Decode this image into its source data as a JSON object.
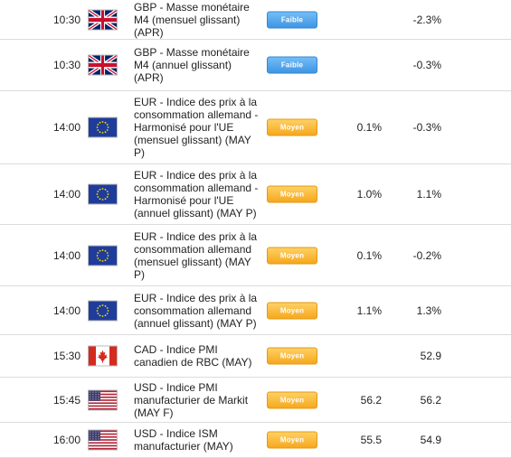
{
  "rows": [
    {
      "time": "10:30",
      "flag": "uk-flag-icon",
      "event": "GBP - Masse monétaire M4 (mensuel glissant) (APR)",
      "impact": "Faible",
      "level": "low",
      "forecast": "",
      "previous": "-2.3%"
    },
    {
      "time": "10:30",
      "flag": "uk-flag-icon",
      "event": "GBP - Masse monétaire M4 (annuel glissant) (APR)",
      "impact": "Faible",
      "level": "low",
      "forecast": "",
      "previous": "-0.3%"
    },
    {
      "time": "14:00",
      "flag": "eu-flag-icon",
      "event": "EUR - Indice des prix à la consommation allemand - Harmonisé pour l'UE (mensuel glissant) (MAY P)",
      "impact": "Moyen",
      "level": "mid",
      "forecast": "0.1%",
      "previous": "-0.3%"
    },
    {
      "time": "14:00",
      "flag": "eu-flag-icon",
      "event": "EUR - Indice des prix à la consommation allemand - Harmonisé pour l'UE (annuel glissant) (MAY P)",
      "impact": "Moyen",
      "level": "mid",
      "forecast": "1.0%",
      "previous": "1.1%"
    },
    {
      "time": "14:00",
      "flag": "eu-flag-icon",
      "event": "EUR - Indice des prix à la consommation allemand (mensuel glissant) (MAY P)",
      "impact": "Moyen",
      "level": "mid",
      "forecast": "0.1%",
      "previous": "-0.2%"
    },
    {
      "time": "14:00",
      "flag": "eu-flag-icon",
      "event": "EUR - Indice des prix à la consommation allemand (annuel glissant) (MAY P)",
      "impact": "Moyen",
      "level": "mid",
      "forecast": "1.1%",
      "previous": "1.3%"
    },
    {
      "time": "15:30",
      "flag": "canada-flag-icon",
      "event": "CAD - Indice PMI canadien de RBC (MAY)",
      "impact": "Moyen",
      "level": "mid",
      "forecast": "",
      "previous": "52.9"
    },
    {
      "time": "15:45",
      "flag": "us-flag-icon",
      "event": "USD - Indice PMI manufacturier de Markit (MAY F)",
      "impact": "Moyen",
      "level": "mid",
      "forecast": "56.2",
      "previous": "56.2"
    },
    {
      "time": "16:00",
      "flag": "us-flag-icon",
      "event": "USD - Indice ISM manufacturier (MAY)",
      "impact": "Moyen",
      "level": "mid",
      "forecast": "55.5",
      "previous": "54.9"
    }
  ]
}
